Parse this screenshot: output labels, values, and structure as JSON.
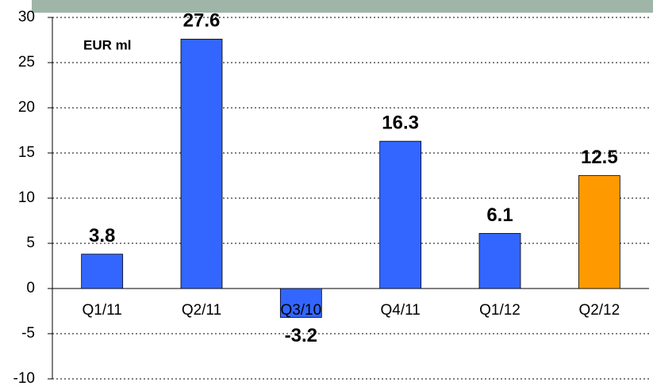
{
  "chart_data": {
    "type": "bar",
    "annotation": "EUR ml",
    "categories": [
      "Q1/11",
      "Q2/11",
      "Q3/10",
      "Q4/11",
      "Q1/12",
      "Q2/12"
    ],
    "values": [
      3.8,
      27.6,
      -3.2,
      16.3,
      6.1,
      12.5
    ],
    "colors": [
      "#3366ff",
      "#3366ff",
      "#3366ff",
      "#3366ff",
      "#3366ff",
      "#ff9900"
    ],
    "ylim": [
      -10,
      30
    ],
    "yticks": [
      -10,
      -5,
      0,
      5,
      10,
      15,
      20,
      25,
      30
    ],
    "grid": true
  }
}
